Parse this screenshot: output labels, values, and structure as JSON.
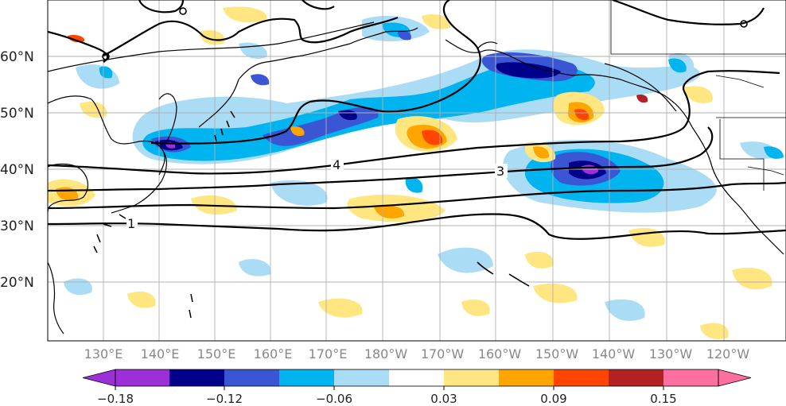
{
  "map": {
    "lat_labels": [
      "60°N",
      "50°N",
      "40°N",
      "30°N",
      "20°N"
    ],
    "lon_labels": [
      "130°E",
      "140°E",
      "150°E",
      "160°E",
      "170°E",
      "180°W",
      "170°W",
      "160°W",
      "150°W",
      "140°W",
      "130°W",
      "120°W"
    ],
    "contour_labels": [
      "4",
      "3",
      "1"
    ],
    "colors": {
      "neg4": "#9b30d9",
      "neg3": "#00008b",
      "neg2": "#3a56d4",
      "neg1": "#00b4f0",
      "neg0": "#aadcf5",
      "zero": "#ffffff",
      "pos1": "#ffe680",
      "pos2": "#ffa500",
      "pos3": "#ff4500",
      "pos4": "#b22222",
      "pos5": "#ff6fa0",
      "land_line": "#000000",
      "grid": "#b0b0b0"
    }
  },
  "colorbar": {
    "tick_labels": [
      "−0.18",
      "−0.12",
      "−0.06",
      "0.03",
      "0.09",
      "0.15"
    ],
    "segment_colors": [
      "#00008b",
      "#3a56d4",
      "#00b4f0",
      "#aadcf5",
      "#ffffff",
      "#ffe680",
      "#ffa500",
      "#ff4500",
      "#b22222"
    ],
    "low_extend_color": "#9b30d9",
    "high_extend_color": "#ff6fa0"
  }
}
